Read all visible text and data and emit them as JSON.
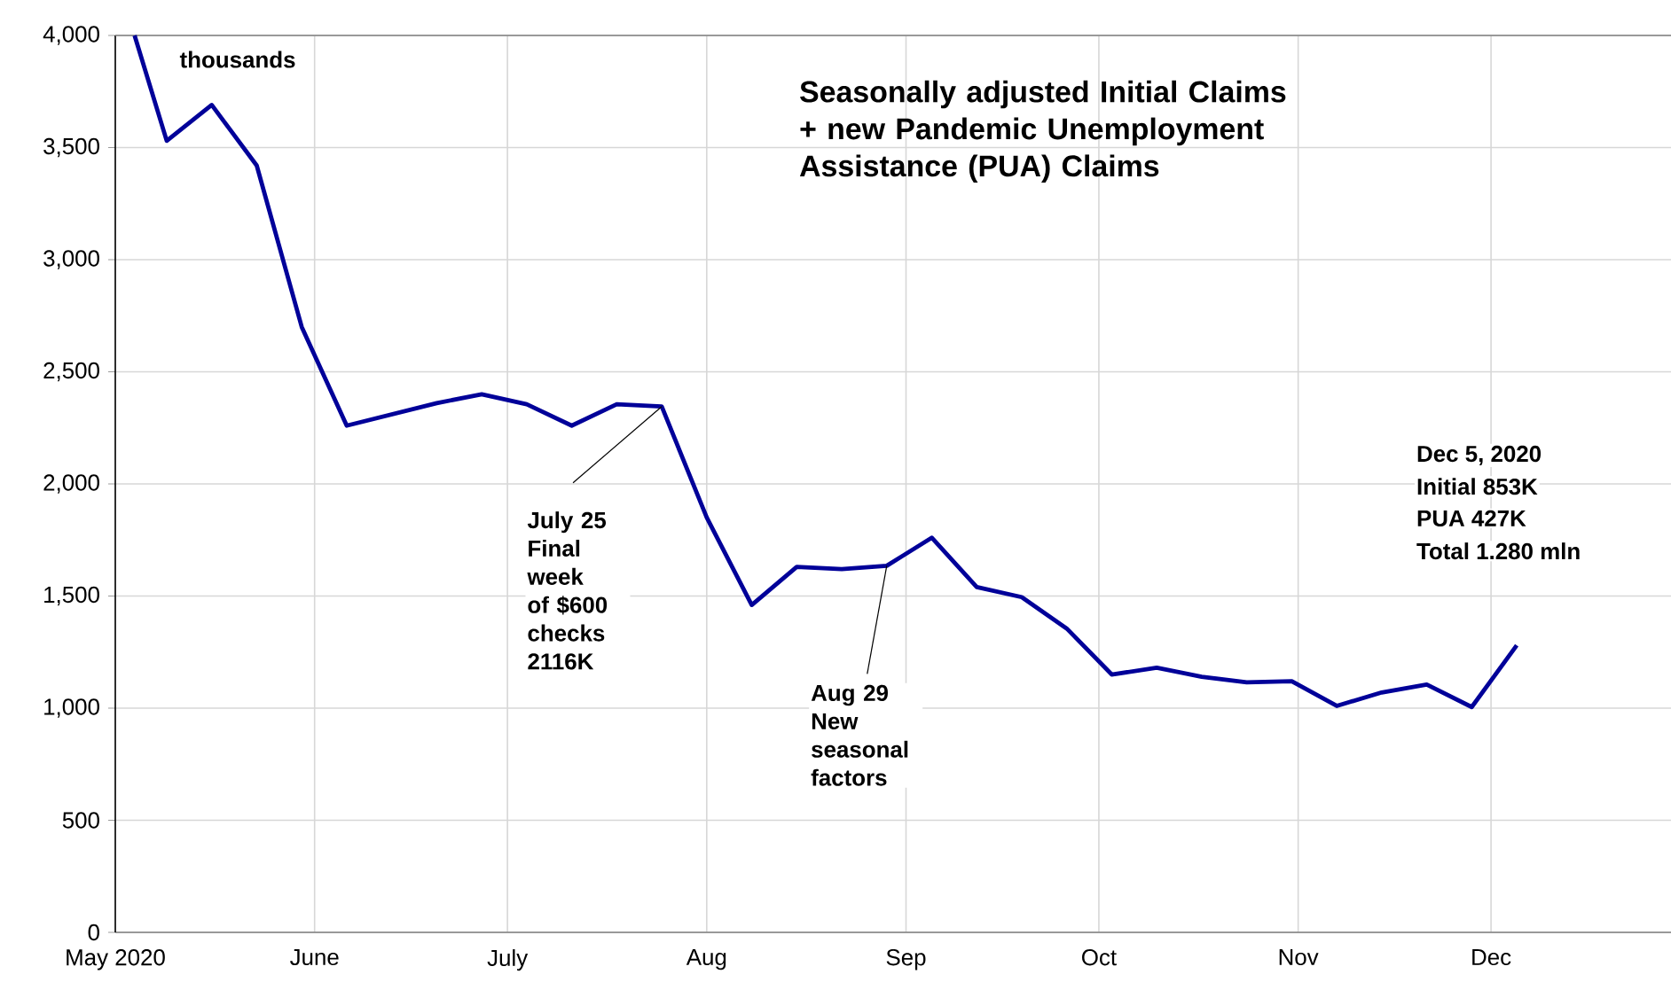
{
  "chart_data": {
    "type": "line",
    "title": "Seasonally adjusted Initial Claims + new Pandemic Unemployment Assistance (PUA) Claims",
    "x": [
      "2020-05-04",
      "2020-05-09",
      "2020-05-16",
      "2020-05-23",
      "2020-05-30",
      "2020-06-06",
      "2020-06-13",
      "2020-06-20",
      "2020-06-27",
      "2020-07-04",
      "2020-07-11",
      "2020-07-18",
      "2020-07-25",
      "2020-08-01",
      "2020-08-08",
      "2020-08-15",
      "2020-08-22",
      "2020-08-29",
      "2020-09-05",
      "2020-09-12",
      "2020-09-19",
      "2020-09-26",
      "2020-10-03",
      "2020-10-10",
      "2020-10-17",
      "2020-10-24",
      "2020-10-31",
      "2020-11-07",
      "2020-11-14",
      "2020-11-21",
      "2020-11-28",
      "2020-12-05"
    ],
    "series": [
      {
        "color": "#000099",
        "values": [
          4000,
          3530,
          3690,
          3420,
          2700,
          2260,
          2310,
          2360,
          2400,
          2355,
          2260,
          2355,
          2345,
          1850,
          1460,
          1630,
          1620,
          1635,
          1760,
          1540,
          1495,
          1355,
          1150,
          1180,
          1140,
          1115,
          1120,
          1010,
          1070,
          1105,
          1005,
          1280
        ]
      }
    ],
    "xlim": [
      "2020-05-01",
      "2020-12-29"
    ],
    "xticks": [
      {
        "value": "2020-05-01",
        "label": "May 2020"
      },
      {
        "value": "2020-06-01",
        "label": "June"
      },
      {
        "value": "2020-07-01",
        "label": "July"
      },
      {
        "value": "2020-08-01",
        "label": "Aug"
      },
      {
        "value": "2020-09-01",
        "label": "Sep"
      },
      {
        "value": "2020-10-01",
        "label": "Oct"
      },
      {
        "value": "2020-11-01",
        "label": "Nov"
      },
      {
        "value": "2020-12-01",
        "label": "Dec"
      }
    ],
    "ylim": [
      0,
      4000
    ],
    "yticks": [
      0,
      500,
      {
        "value": 1000,
        "label": "1,000"
      },
      {
        "value": 1500,
        "label": "1,500"
      },
      {
        "value": 2000,
        "label": "2,000"
      },
      {
        "value": 2500,
        "label": "2,500"
      },
      {
        "value": 3000,
        "label": "3,000"
      },
      {
        "value": 3500,
        "label": "3,500"
      },
      {
        "value": 4000,
        "label": "4,000"
      }
    ],
    "annotations": [
      "thousands",
      {
        "text": "July 25 Final week of $600 checks 2116K",
        "x": "2020-07-25",
        "y": 2345
      },
      {
        "text": "Aug 29 New seasonal factors",
        "x": "2020-08-29",
        "y": 1635
      },
      "Dec 5, 2020",
      "Initial 853K",
      "PUA 427K",
      "Total 1.280 mln"
    ],
    "grid": true,
    "marker": "none",
    "line_style": "solid"
  }
}
